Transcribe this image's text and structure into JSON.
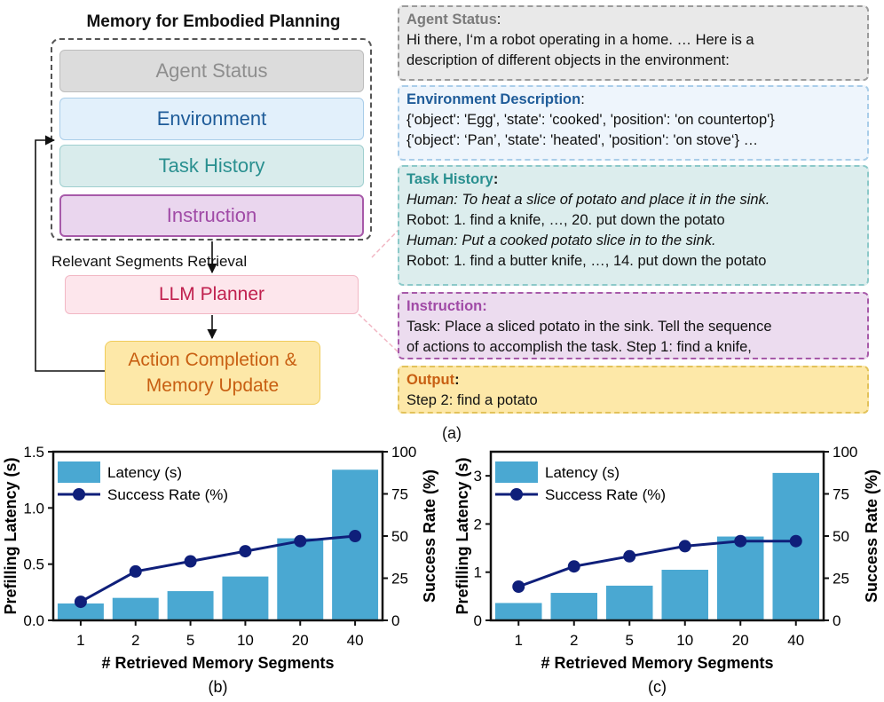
{
  "diagram": {
    "title": "Memory for Embodied Planning",
    "memory_boxes": [
      {
        "label": "Agent Status",
        "bg": "#dcdcdc",
        "border": "#bdbdbd",
        "color": "#8e8e8e"
      },
      {
        "label": "Environment",
        "bg": "#e2f0fb",
        "border": "#a9cde9",
        "color": "#1f5c99"
      },
      {
        "label": "Task History",
        "bg": "#d9ecec",
        "border": "#9fcfcf",
        "color": "#2a9090"
      },
      {
        "label": "Instruction",
        "bg": "#ead6ee",
        "border": "#a75aa9",
        "color": "#a04aa6"
      }
    ],
    "retrieval_label": "Relevant Segments  Retrieval",
    "llm_planner": "LLM Planner",
    "action_line1": "Action Completion &",
    "action_line2": "Memory Update",
    "caption": "(a)"
  },
  "panels": {
    "agent": {
      "heading": "Agent Status",
      "heading_suffix": ":",
      "line1": "Hi there, I‘m a robot operating in a home. … Here is a",
      "line2": "description of different objects in the environment:",
      "bg": "#e9e9e9",
      "border": "#9b9b9b",
      "heading_color": "#7a7a7a"
    },
    "environment": {
      "heading": "Environment Description",
      "heading_suffix": ":",
      "line1": "{'object': 'Egg', 'state': 'cooked', 'position': 'on countertop'}",
      "line2": "{'object': ‘Pan’, 'state': 'heated', 'position': 'on stove‘} …",
      "bg": "#eef5fc",
      "border": "#a9cde9",
      "heading_color": "#1f5c99"
    },
    "task_history": {
      "heading": "Task History",
      "heading_suffix": ":",
      "line1": "Human: To heat a slice of potato and place it in the sink.",
      "line2": "Robot: 1. find a knife, …, 20. put down the potato",
      "line3": "Human: Put a cooked potato slice in to the sink.",
      "line4": "Robot: 1. find a butter knife, …, 14. put down the potato",
      "bg": "#dceded",
      "border": "#8cc9c9",
      "heading_color": "#2a9090"
    },
    "instruction": {
      "heading": "Instruction:",
      "line1": "Task: Place a sliced potato in the sink. Tell the sequence",
      "line2": "of actions to accomplish the task. Step 1: find a knife,",
      "bg": "#ecdcef",
      "border": "#a75aa9",
      "heading_color": "#a04aa6"
    },
    "output": {
      "heading": "Output",
      "heading_suffix": ":",
      "line1": "Step 2: find a potato",
      "bg": "#fde8a8",
      "border": "#e2c25a",
      "heading_color": "#c85f12"
    }
  },
  "chart_data": [
    {
      "type": "bar",
      "caption": "(b)",
      "categories": [
        "1",
        "2",
        "5",
        "10",
        "20",
        "40"
      ],
      "series": [
        {
          "name": "Latency (s)",
          "type": "bar",
          "axis": "left",
          "values": [
            0.15,
            0.2,
            0.26,
            0.39,
            0.73,
            1.34
          ]
        },
        {
          "name": "Success Rate (%)",
          "type": "line",
          "axis": "right",
          "values": [
            11,
            29,
            35,
            41,
            47,
            50
          ]
        }
      ],
      "xlabel": "# Retrieved Memory Segments",
      "ylabel": "Prefilling Latency (s)",
      "y2label": "Success Rate (%)",
      "ylim": [
        0,
        1.5
      ],
      "yticks": [
        "0.0",
        "0.5",
        "1.0",
        "1.5"
      ],
      "y2lim": [
        0,
        100
      ],
      "y2ticks": [
        "0",
        "25",
        "50",
        "75",
        "100"
      ],
      "legend": "top-left",
      "bar_color": "#4aa8d2",
      "line_color": "#0f1f7a"
    },
    {
      "type": "bar",
      "caption": "(c)",
      "categories": [
        "1",
        "2",
        "5",
        "10",
        "20",
        "40"
      ],
      "series": [
        {
          "name": "Latency (s)",
          "type": "bar",
          "axis": "left",
          "values": [
            0.36,
            0.57,
            0.72,
            1.05,
            1.74,
            3.06
          ]
        },
        {
          "name": "Success Rate (%)",
          "type": "line",
          "axis": "right",
          "values": [
            20,
            32,
            38,
            44,
            47,
            47
          ]
        }
      ],
      "xlabel": "# Retrieved Memory Segments",
      "ylabel": "Prefilling Latency (s)",
      "y2label": "Success Rate (%)",
      "ylim": [
        0,
        3.5
      ],
      "yticks": [
        "0",
        "1",
        "2",
        "3"
      ],
      "y2lim": [
        0,
        100
      ],
      "y2ticks": [
        "0",
        "25",
        "50",
        "75",
        "100"
      ],
      "legend": "top-left",
      "bar_color": "#4aa8d2",
      "line_color": "#0f1f7a"
    }
  ]
}
